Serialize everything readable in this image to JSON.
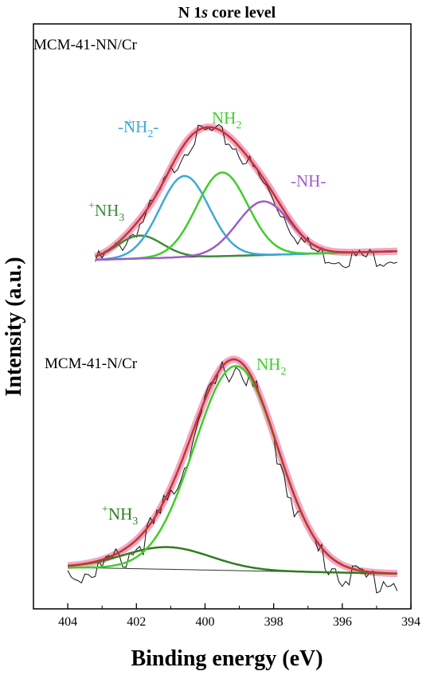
{
  "chart_data": {
    "type": "line",
    "title_prefix": "N 1",
    "title_italic": "s",
    "title_suffix": " core level",
    "xlabel": "Binding energy (eV)",
    "ylabel": "Intensity (a.u.)",
    "xlim": [
      405,
      394
    ],
    "x_reversed": true,
    "xticks": [
      404,
      402,
      400,
      398,
      396,
      394
    ],
    "yticks_shown": false,
    "grid": false,
    "legend": "none",
    "colors": {
      "raw": "#111111",
      "envelope": "#C0392B",
      "envelope_glow": "#F4A6C8",
      "nh3": "#3D8A3D",
      "nh3_dark": "#2E7D1E",
      "nh2a": "#3BAAD8",
      "nh2": "#3ECF29",
      "nh": "#A05CC8",
      "baseline": "#333333"
    },
    "panels": [
      {
        "sample": "MCM-41-NN/Cr",
        "range": [
          403.2,
          394.4
        ],
        "baseline": [
          0.0,
          0.18
        ],
        "raw_noise": 1.0,
        "components": [
          {
            "key": "nh3",
            "label_text": "+NH3",
            "label_pre_sup": "+",
            "label_main": "NH",
            "label_sub": "3",
            "label_suf": "",
            "color": "#3D8A3D",
            "center": 401.9,
            "amp": 0.48,
            "fwhm": 1.55
          },
          {
            "key": "nh2a",
            "label_text": "-+NH2-",
            "label_pre_sup": "+",
            "label_main": "-NH",
            "label_sub": "2",
            "label_suf": "-",
            "color": "#3BAAD8",
            "center": 400.6,
            "amp": 1.7,
            "fwhm": 1.7
          },
          {
            "key": "nh2",
            "label_text": "NH2",
            "label_pre_sup": "",
            "label_main": "NH",
            "label_sub": "2",
            "label_suf": "",
            "color": "#3ECF29",
            "center": 399.5,
            "amp": 1.75,
            "fwhm": 1.75
          },
          {
            "key": "nh",
            "label_text": "-NH-",
            "label_pre_sup": "",
            "label_main": "-NH-",
            "label_sub": "",
            "label_suf": "",
            "color": "#A05CC8",
            "center": 398.3,
            "amp": 1.12,
            "fwhm": 1.8
          }
        ]
      },
      {
        "sample": "MCM-41-N/Cr",
        "range": [
          404.0,
          394.4
        ],
        "baseline": [
          0.0,
          -0.09
        ],
        "raw_noise": 1.0,
        "components": [
          {
            "key": "nh3_dark",
            "label_text": "+NH3",
            "label_pre_sup": "+",
            "label_main": "NH",
            "label_sub": "3",
            "label_suf": "",
            "color": "#2E7D1E",
            "center": 401.1,
            "amp": 0.32,
            "fwhm": 3.0
          },
          {
            "key": "nh2",
            "label_text": "NH2",
            "label_pre_sup": "",
            "label_main": "NH",
            "label_sub": "2",
            "label_suf": "",
            "color": "#3ECF29",
            "center": 399.1,
            "amp": 2.95,
            "fwhm": 2.85
          }
        ]
      }
    ]
  }
}
